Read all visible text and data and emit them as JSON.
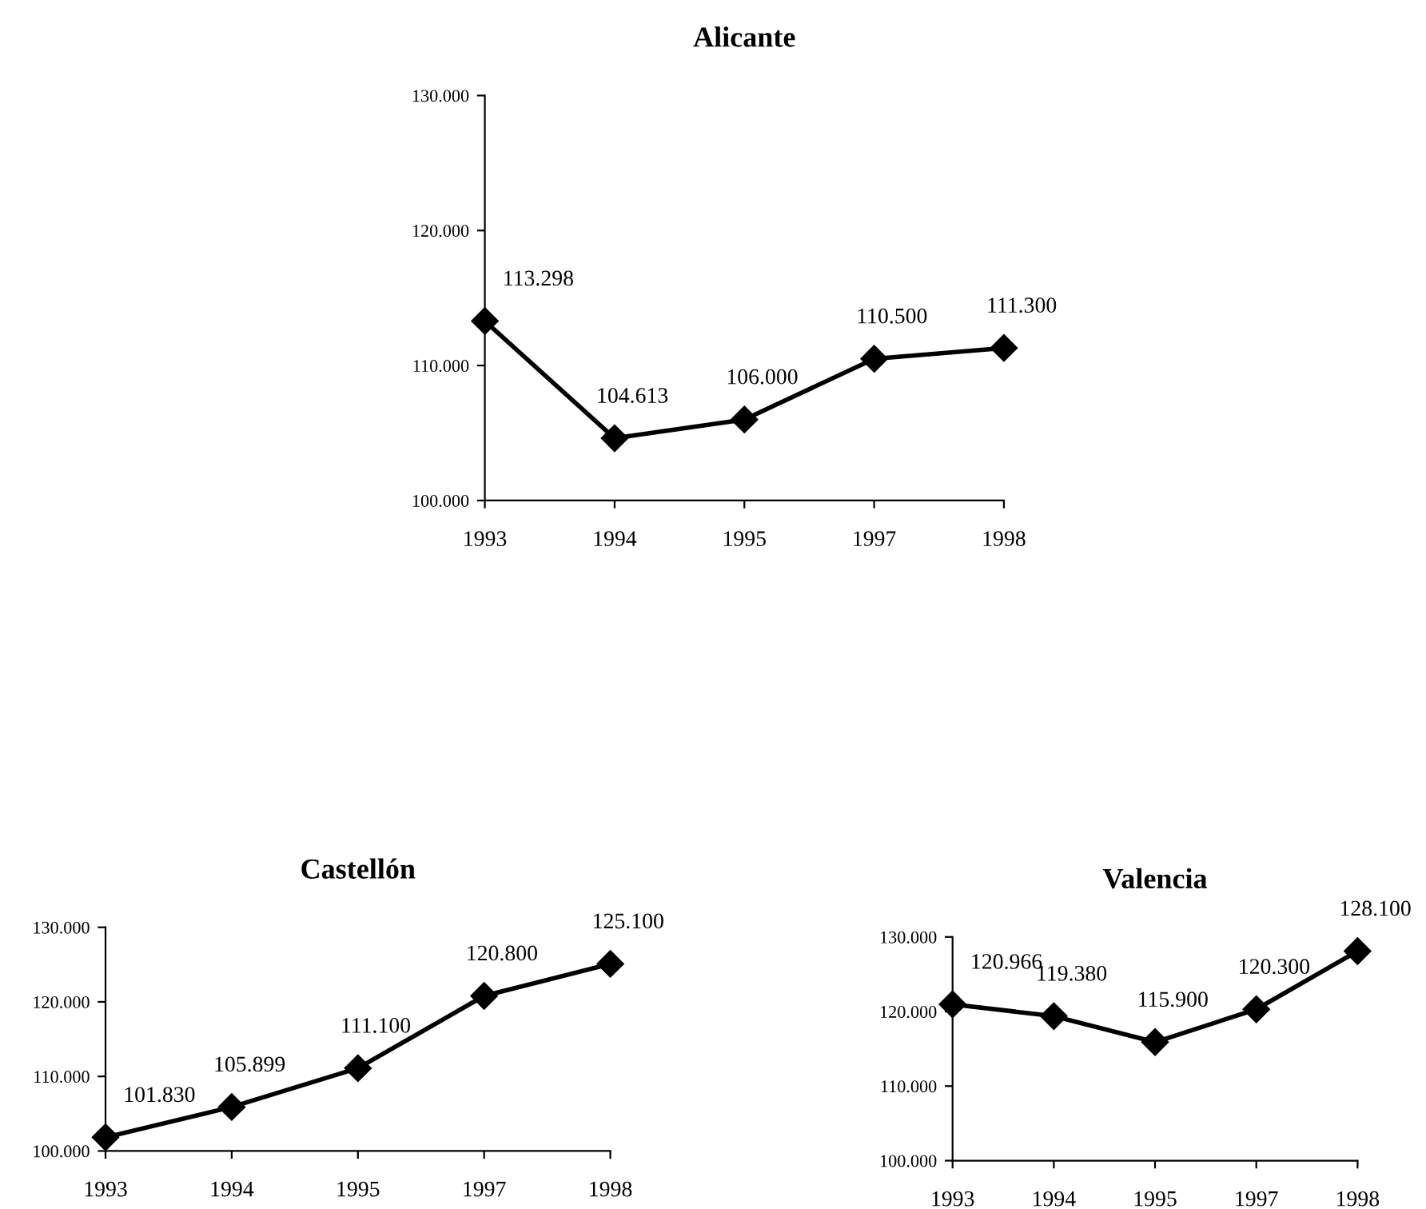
{
  "chart_data": [
    {
      "type": "line",
      "title": "Alicante",
      "categories": [
        "1993",
        "1994",
        "1995",
        "1997",
        "1998"
      ],
      "series": [
        {
          "color": "#000000",
          "values": [
            113298,
            104613,
            106000,
            110500,
            111300
          ],
          "value_labels": [
            "113.298",
            "104.613",
            "106.000",
            "110.500",
            "111.300"
          ]
        }
      ],
      "ylim": [
        100000,
        130000
      ],
      "yticks": [
        {
          "value": 100000,
          "label": "100.000"
        },
        {
          "value": 110000,
          "label": "110.000"
        },
        {
          "value": 120000,
          "label": "120.000"
        },
        {
          "value": 130000,
          "label": "130.000"
        }
      ],
      "marker": "diamond",
      "line_style": "solid",
      "grid": false
    },
    {
      "type": "line",
      "title": "Castellón",
      "categories": [
        "1993",
        "1994",
        "1995",
        "1997",
        "1998"
      ],
      "series": [
        {
          "color": "#000000",
          "values": [
            101830,
            105899,
            111100,
            120800,
            125100
          ],
          "value_labels": [
            "101.830",
            "105.899",
            "111.100",
            "120.800",
            "125.100"
          ]
        }
      ],
      "ylim": [
        100000,
        130000
      ],
      "yticks": [
        {
          "value": 100000,
          "label": "100.000"
        },
        {
          "value": 110000,
          "label": "110.000"
        },
        {
          "value": 120000,
          "label": "120.000"
        },
        {
          "value": 130000,
          "label": "130.000"
        }
      ],
      "marker": "diamond",
      "line_style": "solid",
      "grid": false
    },
    {
      "type": "line",
      "title": "Valencia",
      "categories": [
        "1993",
        "1994",
        "1995",
        "1997",
        "1998"
      ],
      "series": [
        {
          "color": "#000000",
          "values": [
            120966,
            119380,
            115900,
            120300,
            128100
          ],
          "value_labels": [
            "120.966",
            "119.380",
            "115.900",
            "120.300",
            "128.100"
          ]
        }
      ],
      "ylim": [
        100000,
        130000
      ],
      "yticks": [
        {
          "value": 100000,
          "label": "100.000"
        },
        {
          "value": 110000,
          "label": "110.000"
        },
        {
          "value": 120000,
          "label": "120.000"
        },
        {
          "value": 130000,
          "label": "130.000"
        }
      ],
      "marker": "diamond",
      "line_style": "solid",
      "grid": false
    }
  ]
}
